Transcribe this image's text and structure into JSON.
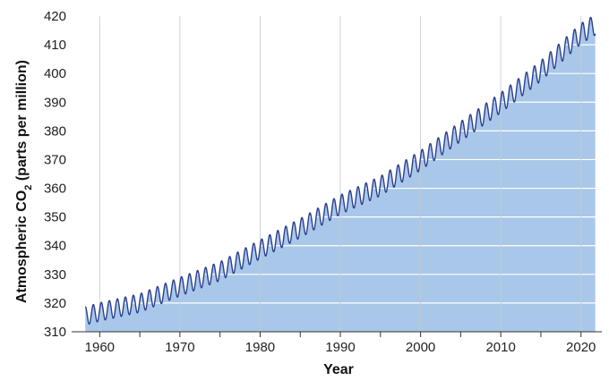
{
  "chart_data": {
    "type": "area",
    "title": "",
    "xlabel": "Year",
    "ylabel_parts": {
      "main": "Atmospheric CO",
      "subscript": "2",
      "suffix": " (parts per million)"
    },
    "xlim": [
      1956.5,
      2022.6
    ],
    "ylim": [
      310,
      420
    ],
    "x_ticks": [
      1960,
      1970,
      1980,
      1990,
      2000,
      2010,
      2020
    ],
    "x_ticks_labels": [
      "1960",
      "1970",
      "1980",
      "1990",
      "2000",
      "2010",
      "2020"
    ],
    "y_ticks": [
      310,
      320,
      330,
      340,
      350,
      360,
      370,
      380,
      390,
      400,
      410,
      420
    ],
    "y_ticks_labels": [
      "310",
      "320",
      "330",
      "340",
      "350",
      "360",
      "370",
      "380",
      "390",
      "400",
      "410",
      "420"
    ],
    "grid": {
      "horizontal": true,
      "vertical": true
    },
    "colors": {
      "line": "#2b3f8f",
      "area": "#a9c8e9",
      "grid": "#ffffff",
      "vgrid": "#c0c8d4"
    },
    "series": [
      {
        "style": "seasonal-line-with-filled-area",
        "x": [
          1958.2,
          1960,
          1965,
          1970,
          1975,
          1980,
          1985,
          1990,
          1995,
          2000,
          2005,
          2010,
          2015,
          2020,
          2021.8
        ],
        "y": [
          315.5,
          316.9,
          320.0,
          325.7,
          331.1,
          338.7,
          346.1,
          354.3,
          360.8,
          369.7,
          379.8,
          389.8,
          400.9,
          413.9,
          417.0
        ],
        "seasonal_amplitude_ppm": 3.2
      }
    ]
  }
}
